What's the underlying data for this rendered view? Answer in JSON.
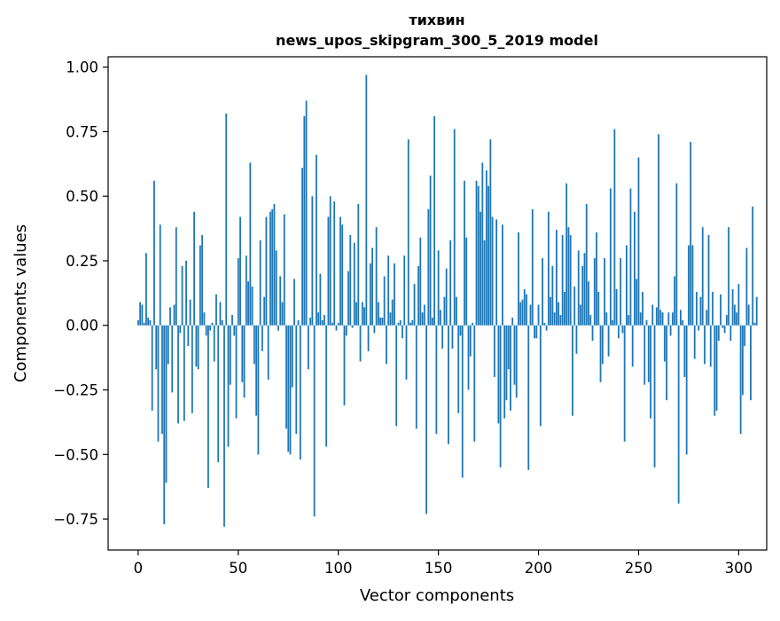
{
  "colors": {
    "bar": "#1f77b4",
    "axis": "#000000",
    "background": "#ffffff"
  },
  "chart_data": {
    "type": "bar",
    "title": "тихвин",
    "subtitle": "news_upos_skipgram_300_5_2019 model",
    "xlabel": "Vector components",
    "ylabel": "Components values",
    "xlim": [
      -15,
      314
    ],
    "ylim": [
      -0.87,
      1.04
    ],
    "xticks": [
      0,
      50,
      100,
      150,
      200,
      250,
      300
    ],
    "xtick_labels": [
      "0",
      "50",
      "100",
      "150",
      "200",
      "250",
      "300"
    ],
    "yticks": [
      1.0,
      0.75,
      0.5,
      0.25,
      0.0,
      -0.25,
      -0.5,
      -0.75
    ],
    "ytick_labels": [
      "1.00",
      "0.75",
      "0.50",
      "0.25",
      "0.00",
      "−0.25",
      "−0.50",
      "−0.75"
    ],
    "values": [
      0.02,
      0.09,
      0.08,
      0.01,
      0.28,
      0.03,
      0.02,
      -0.33,
      0.56,
      -0.17,
      -0.45,
      0.39,
      -0.42,
      -0.77,
      -0.61,
      -0.15,
      0.07,
      -0.26,
      0.08,
      0.38,
      -0.38,
      -0.03,
      0.23,
      -0.37,
      0.25,
      -0.08,
      0.1,
      -0.34,
      0.44,
      -0.16,
      -0.17,
      0.31,
      0.35,
      0.05,
      -0.04,
      -0.63,
      -0.02,
      0.01,
      -0.14,
      0.12,
      -0.53,
      0.09,
      0.02,
      -0.78,
      0.82,
      -0.47,
      -0.23,
      0.04,
      -0.04,
      -0.36,
      0.26,
      0.42,
      -0.22,
      -0.28,
      0.27,
      0.17,
      0.63,
      0.15,
      -0.15,
      -0.35,
      -0.5,
      0.33,
      -0.1,
      0.11,
      0.42,
      -0.21,
      0.44,
      0.45,
      0.47,
      0.29,
      -0.02,
      0.19,
      0.09,
      0.43,
      -0.4,
      -0.49,
      -0.5,
      -0.24,
      0.18,
      -0.42,
      0.02,
      -0.52,
      0.61,
      0.81,
      0.87,
      -0.17,
      0.03,
      0.5,
      -0.74,
      0.66,
      0.05,
      0.2,
      0.02,
      0.04,
      -0.47,
      0.42,
      0.5,
      0.01,
      0.48,
      -0.02,
      0.01,
      0.42,
      0.39,
      -0.31,
      -0.04,
      0.21,
      0.35,
      -0.01,
      0.32,
      0.09,
      0.47,
      -0.14,
      0.09,
      0.07,
      0.97,
      -0.1,
      0.24,
      0.3,
      -0.03,
      0.38,
      0.09,
      0.03,
      0.03,
      0.19,
      -0.15,
      0.27,
      0.05,
      0.1,
      0.24,
      -0.39,
      0.01,
      0.02,
      -0.05,
      0.27,
      -0.21,
      0.72,
      0.01,
      0.02,
      0.16,
      -0.4,
      0.23,
      0.34,
      0.05,
      0.08,
      -0.73,
      0.45,
      0.58,
      0.03,
      0.81,
      -0.42,
      0.29,
      0.06,
      -0.09,
      0.11,
      0.22,
      -0.46,
      0.33,
      -0.09,
      0.76,
      0.11,
      -0.34,
      -0.04,
      -0.59,
      0.56,
      0.34,
      -0.25,
      -0.12,
      0.01,
      -0.45,
      0.56,
      0.54,
      0.44,
      0.63,
      0.33,
      0.6,
      0.54,
      0.72,
      0.42,
      -0.2,
      0.41,
      -0.38,
      -0.55,
      0.39,
      -0.36,
      -0.29,
      -0.17,
      -0.33,
      0.03,
      -0.23,
      -0.28,
      0.36,
      0.09,
      0.1,
      0.14,
      0.12,
      -0.56,
      0.08,
      0.45,
      -0.05,
      -0.05,
      0.08,
      -0.39,
      0.26,
      0.01,
      -0.02,
      0.44,
      0.11,
      0.23,
      0.05,
      0.37,
      0.09,
      0.04,
      0.35,
      0.13,
      0.55,
      0.38,
      0.35,
      -0.35,
      0.15,
      -0.11,
      0.29,
      0.08,
      0.23,
      0.28,
      0.47,
      0.17,
      0.04,
      -0.06,
      0.26,
      0.36,
      0.13,
      -0.22,
      -0.15,
      0.26,
      0.05,
      -0.12,
      0.53,
      0.02,
      0.76,
      0.14,
      -0.05,
      0.26,
      -0.03,
      -0.45,
      0.31,
      0.04,
      0.53,
      -0.16,
      0.44,
      0.18,
      0.65,
      0.05,
      0.13,
      -0.23,
      0.02,
      -0.22,
      -0.36,
      0.08,
      -0.55,
      0.07,
      0.74,
      0.06,
      0.05,
      -0.14,
      -0.29,
      0.05,
      -0.04,
      0.05,
      0.19,
      0.55,
      -0.69,
      0.06,
      0.02,
      -0.2,
      -0.5,
      0.31,
      0.71,
      0.31,
      -0.13,
      0.13,
      -0.02,
      0.11,
      0.38,
      -0.15,
      0.06,
      0.35,
      -0.16,
      0.13,
      -0.35,
      -0.33,
      -0.06,
      0.12,
      -0.01,
      -0.03,
      0.04,
      0.38,
      -0.06,
      0.14,
      0.08,
      0.05,
      0.16,
      -0.42,
      -0.27,
      -0.08,
      0.3,
      0.08,
      -0.29,
      0.46,
      0.01,
      0.11
    ]
  }
}
